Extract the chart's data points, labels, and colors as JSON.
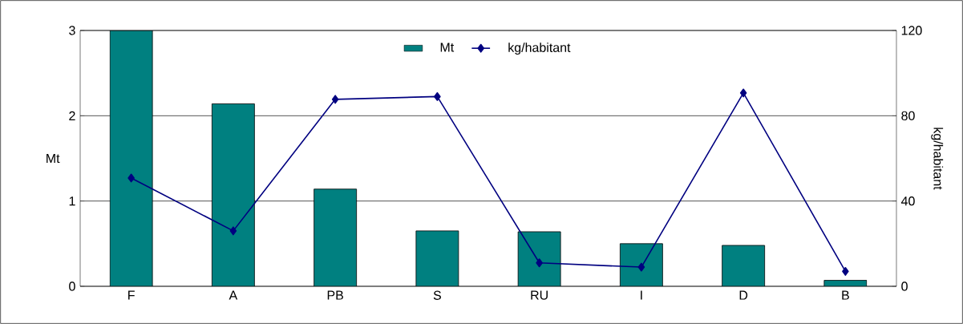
{
  "chart_data": {
    "type": "bar",
    "categories": [
      "F",
      "A",
      "PB",
      "S",
      "RU",
      "I",
      "D",
      "B"
    ],
    "series": [
      {
        "name": "Mt",
        "color": "#008080",
        "values": [
          3.0,
          2.14,
          1.14,
          0.65,
          0.64,
          0.5,
          0.48,
          0.07
        ]
      },
      {
        "name": "kg/habitant",
        "type": "line",
        "axis": "y2",
        "color": "#000080",
        "marker": "diamond",
        "values": [
          50.8,
          26,
          87.7,
          89,
          11,
          9,
          90.7,
          7
        ]
      }
    ],
    "ylabel": "Mt",
    "y2label": "kg/habitant",
    "ylim": [
      0,
      3
    ],
    "yticks": [
      0,
      1,
      2,
      3
    ],
    "y2lim": [
      0,
      120
    ],
    "y2ticks": [
      0,
      40,
      80,
      120
    ],
    "grid": "y",
    "legend": "top"
  }
}
